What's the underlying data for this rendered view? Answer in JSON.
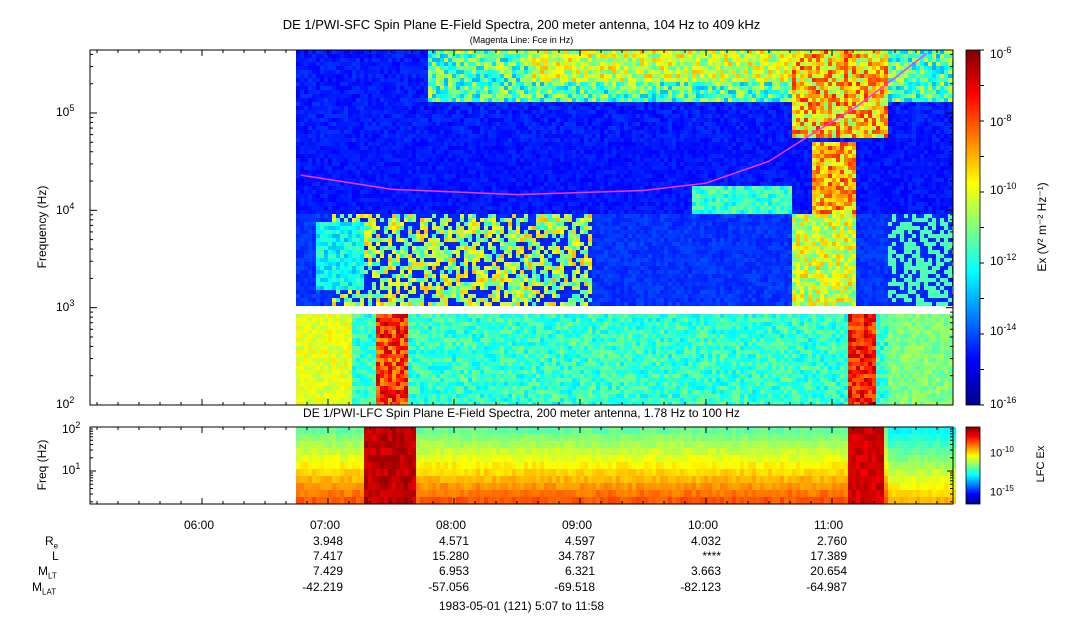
{
  "chart_data": [
    {
      "type": "heatmap",
      "title": "DE 1/PWI-SFC  Spin Plane E-Field Spectra, 200 meter antenna, 104 Hz to 409 kHz",
      "subtitle": "(Magenta Line: Fce in Hz)",
      "ylabel": "Frequency (Hz)",
      "yscale": "log",
      "ylim": [
        100,
        409000
      ],
      "y_ticks": [
        "10^2",
        "10^3",
        "10^4",
        "10^5"
      ],
      "colorbar": {
        "label": "Ex (V² m⁻² Hz⁻¹)",
        "scale": "log",
        "range": [
          1e-16,
          1e-06
        ],
        "ticks": [
          "10^-6",
          "10^-8",
          "10^-10",
          "10^-12",
          "10^-14",
          "10^-16"
        ]
      },
      "fce_line": {
        "color": "#ff33ff",
        "points": [
          [
            "06:47",
            23000
          ],
          [
            "07:30",
            16500
          ],
          [
            "08:30",
            14500
          ],
          [
            "09:30",
            16000
          ],
          [
            "10:00",
            19000
          ],
          [
            "10:30",
            32000
          ],
          [
            "10:50",
            60000
          ],
          [
            "11:10",
            110000
          ],
          [
            "11:30",
            230000
          ],
          [
            "11:45",
            409000
          ]
        ]
      }
    },
    {
      "type": "heatmap",
      "title": "DE 1/PWI-LFC  Spin Plane E-Field Spectra, 200 meter antenna, 1.78 Hz to 100 Hz",
      "ylabel": "Freq (Hz)",
      "yscale": "log",
      "ylim": [
        1.78,
        100
      ],
      "y_ticks": [
        "10^1",
        "10^2"
      ],
      "colorbar": {
        "label": "LFC Ex",
        "scale": "log",
        "ticks": [
          "10^-10",
          "10^-15"
        ]
      }
    }
  ],
  "time_axis": {
    "labels": [
      "06:00",
      "07:00",
      "08:00",
      "09:00",
      "10:00",
      "11:00"
    ],
    "range": [
      "05:07",
      "11:58"
    ],
    "data_start": "06:47"
  },
  "ephemeris": {
    "rows": [
      {
        "name": "R",
        "sub": "e",
        "values": [
          "3.948",
          "4.571",
          "4.597",
          "4.032",
          "2.760"
        ]
      },
      {
        "name": "L",
        "sub": "",
        "values": [
          "7.417",
          "15.280",
          "34.787",
          "****",
          "17.389"
        ]
      },
      {
        "name": "M",
        "sub": "LT",
        "values": [
          "7.429",
          "6.953",
          "6.321",
          "3.663",
          "20.654"
        ]
      },
      {
        "name": "M",
        "sub": "LAT",
        "values": [
          "-42.219",
          "-57.056",
          "-69.518",
          "-82.123",
          "-64.987"
        ]
      }
    ],
    "columns": [
      "07:00",
      "08:00",
      "09:00",
      "10:00",
      "11:00"
    ]
  },
  "date_label": "1983-05-01 (121) 5:07 to 11:58",
  "colors": {
    "fce_line": "#ff33ff",
    "background_low": "#0a0a9a"
  }
}
